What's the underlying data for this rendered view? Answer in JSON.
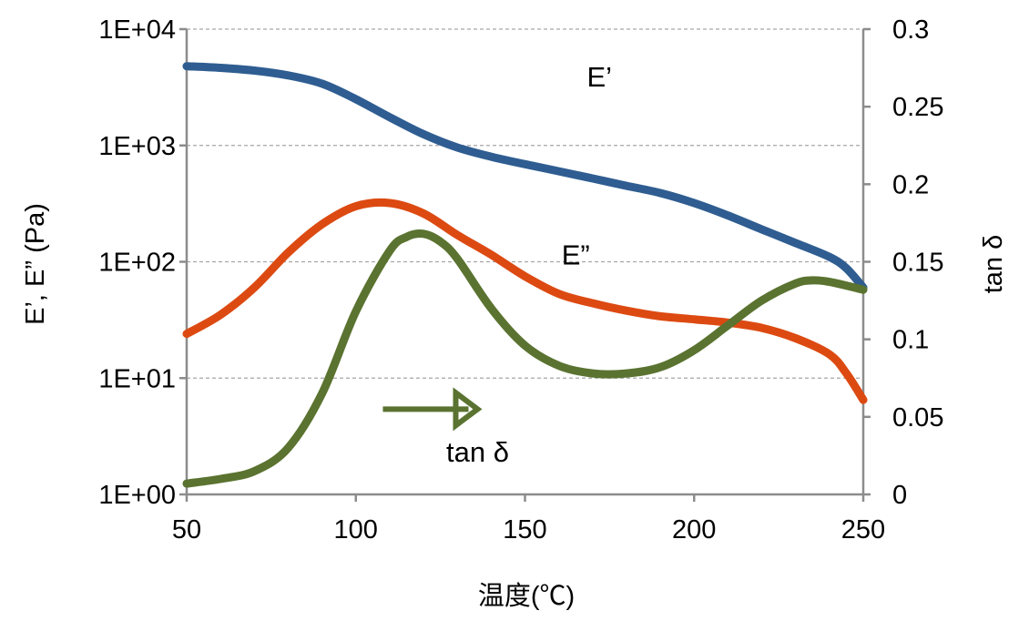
{
  "chart_data": {
    "type": "line",
    "xlabel": "温度(℃)",
    "ylabel": "E’, E” (Pa)",
    "y2label": "tan δ",
    "xlim": [
      50,
      250
    ],
    "x_ticks": [
      "50",
      "100",
      "150",
      "200",
      "250"
    ],
    "ylim": [
      1,
      10000
    ],
    "y_scale": "log",
    "y_ticks": [
      "1E+00",
      "1E+01",
      "1E+02",
      "1E+03",
      "1E+04"
    ],
    "y2lim": [
      0,
      0.3
    ],
    "y2_ticks": [
      "0",
      "0.05",
      "0.1",
      "0.15",
      "0.2",
      "0.25",
      "0.3"
    ],
    "grid": true,
    "series": [
      {
        "name": "E’",
        "axis": "left",
        "color": "#2f5d91",
        "x": [
          50,
          60,
          70,
          80,
          90,
          100,
          110,
          120,
          130,
          140,
          150,
          160,
          170,
          180,
          190,
          200,
          210,
          220,
          230,
          240,
          245,
          250
        ],
        "values": [
          4800,
          4650,
          4400,
          4000,
          3400,
          2500,
          1750,
          1250,
          960,
          800,
          690,
          600,
          520,
          450,
          390,
          320,
          250,
          190,
          145,
          110,
          88,
          60
        ]
      },
      {
        "name": "E”",
        "axis": "left",
        "color": "#dc4a12",
        "x": [
          50,
          60,
          70,
          80,
          90,
          100,
          110,
          120,
          130,
          140,
          150,
          160,
          170,
          180,
          190,
          200,
          210,
          220,
          230,
          240,
          245,
          250
        ],
        "values": [
          24,
          35,
          60,
          120,
          210,
          300,
          320,
          260,
          170,
          115,
          75,
          53,
          44,
          38,
          34,
          32,
          30,
          27,
          22,
          16,
          11,
          6.5
        ]
      },
      {
        "name": "tan δ",
        "axis": "right",
        "color": "#5a7330",
        "x": [
          50,
          60,
          70,
          80,
          90,
          100,
          110,
          115,
          120,
          125,
          130,
          140,
          150,
          160,
          170,
          180,
          190,
          200,
          210,
          220,
          230,
          235,
          240,
          250
        ],
        "values": [
          0.007,
          0.01,
          0.015,
          0.03,
          0.065,
          0.118,
          0.157,
          0.166,
          0.168,
          0.163,
          0.152,
          0.12,
          0.096,
          0.083,
          0.078,
          0.078,
          0.082,
          0.093,
          0.109,
          0.125,
          0.136,
          0.138,
          0.137,
          0.132
        ]
      }
    ],
    "annotations": [
      {
        "text": "E’",
        "x": 172,
        "y": 3200
      },
      {
        "text": "E”",
        "x": 165,
        "y": 95
      },
      {
        "text": "tan δ",
        "x": 136,
        "y": 0.021,
        "axis": "right"
      }
    ],
    "arrow": {
      "x1": 108,
      "x2": 136,
      "y": 0.055,
      "axis": "right",
      "color": "#5a7330"
    }
  }
}
